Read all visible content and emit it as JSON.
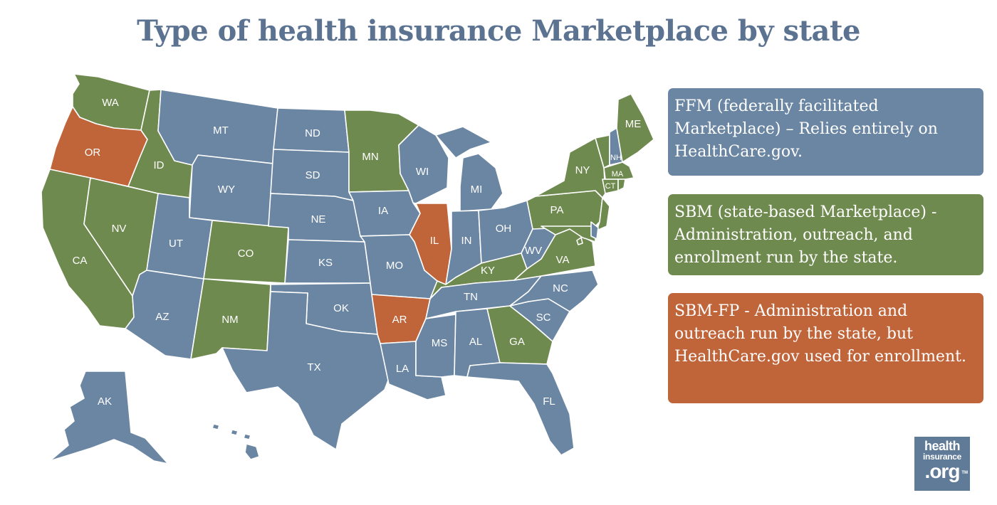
{
  "title": "Type of health insurance Marketplace by state",
  "colors": {
    "ffm": "#6b86a3",
    "sbm": "#6f8a4f",
    "sbmfp": "#c0643a",
    "title": "#5b7391"
  },
  "legend": [
    {
      "type": "ffm",
      "text": "FFM (federally facilitated Marketplace) – Relies entirely on HealthCare.gov."
    },
    {
      "type": "sbm",
      "text": "SBM (state-based Marketplace) - Administration, outreach, and enrollment run by the state."
    },
    {
      "type": "sbmfp",
      "text": "SBM-FP - Administration and outreach run by the state, but HealthCare.gov used for enrollment."
    }
  ],
  "states": {
    "WA": "sbm",
    "OR": "sbmfp",
    "CA": "sbm",
    "NV": "sbm",
    "ID": "sbm",
    "MT": "ffm",
    "WY": "ffm",
    "UT": "ffm",
    "AZ": "ffm",
    "CO": "sbm",
    "NM": "sbm",
    "ND": "ffm",
    "SD": "ffm",
    "NE": "ffm",
    "KS": "ffm",
    "OK": "ffm",
    "TX": "ffm",
    "MN": "sbm",
    "IA": "ffm",
    "MO": "ffm",
    "AR": "sbmfp",
    "LA": "ffm",
    "WI": "ffm",
    "IL": "sbmfp",
    "MI": "ffm",
    "IN": "ffm",
    "OH": "ffm",
    "KY": "sbm",
    "TN": "ffm",
    "MS": "ffm",
    "AL": "ffm",
    "GA": "sbm",
    "FL": "ffm",
    "SC": "ffm",
    "NC": "ffm",
    "VA": "sbm",
    "WV": "ffm",
    "PA": "sbm",
    "NY": "sbm",
    "VT": "sbm",
    "NH": "ffm",
    "ME": "sbm",
    "MA": "sbm",
    "CT": "sbm",
    "RI": "sbm",
    "NJ": "sbm",
    "DE": "ffm",
    "MD": "sbm",
    "DC": "sbm",
    "AK": "ffm",
    "HI": "ffm"
  },
  "state_labels": [
    "WA",
    "OR",
    "CA",
    "NV",
    "ID",
    "MT",
    "WY",
    "UT",
    "AZ",
    "CO",
    "NM",
    "ND",
    "SD",
    "NE",
    "KS",
    "OK",
    "TX",
    "MN",
    "IA",
    "MO",
    "AR",
    "LA",
    "WI",
    "IL",
    "MI",
    "IN",
    "OH",
    "KY",
    "TN",
    "MS",
    "AL",
    "GA",
    "FL",
    "SC",
    "NC",
    "VA",
    "WV",
    "PA",
    "NY",
    "NH",
    "ME",
    "MA",
    "CT",
    "AK"
  ],
  "logo": {
    "line1": "health",
    "line2": "insurance",
    "line3": ".org",
    "tm": "TM"
  }
}
